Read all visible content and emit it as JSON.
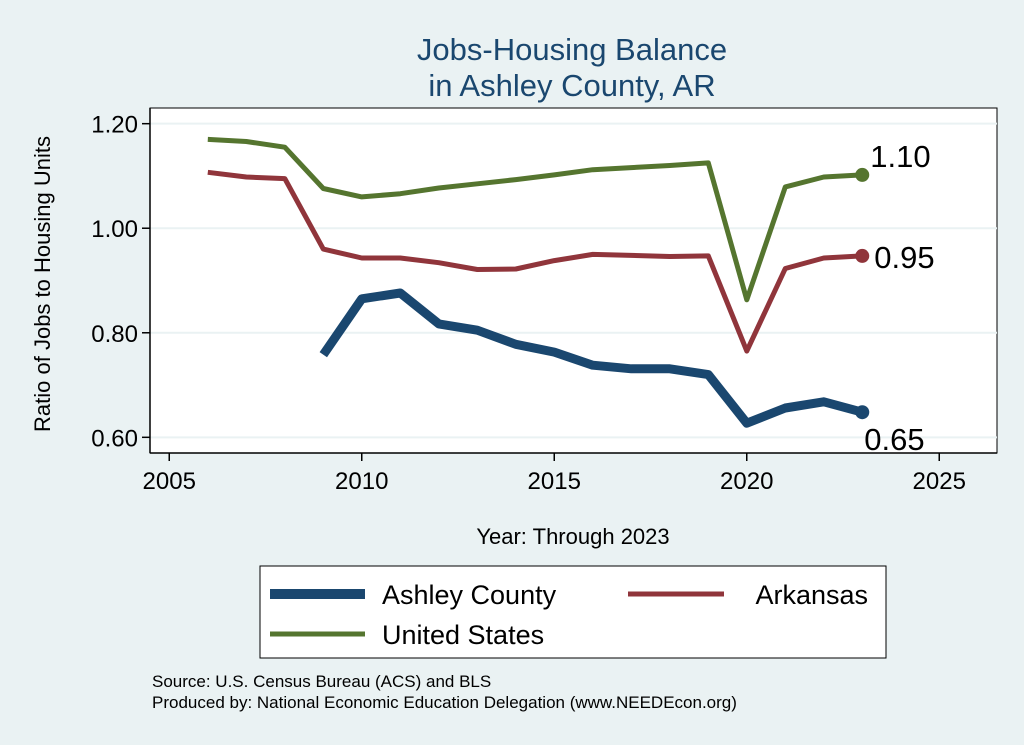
{
  "chart_data": {
    "type": "line",
    "title": [
      "Jobs-Housing Balance",
      "in Ashley County, AR"
    ],
    "xlabel": "Year: Through 2023",
    "ylabel": "Ratio of Jobs to Housing Units",
    "xlim": [
      2004.5,
      2026.5
    ],
    "ylim": [
      0.57,
      1.23
    ],
    "x_ticks": [
      2005,
      2010,
      2015,
      2020,
      2025
    ],
    "y_ticks": [
      0.6,
      0.8,
      1.0,
      1.2
    ],
    "y_tick_labels": [
      "0.60",
      "0.80",
      "1.00",
      "1.20"
    ],
    "grid": true,
    "legend_position": "bottom",
    "series": [
      {
        "name": "Ashley County",
        "color": "#1a476f",
        "x": [
          2009,
          2010,
          2011,
          2012,
          2013,
          2014,
          2015,
          2016,
          2017,
          2018,
          2019,
          2020,
          2021,
          2022,
          2023
        ],
        "y": [
          0.758,
          0.865,
          0.876,
          0.817,
          0.805,
          0.778,
          0.763,
          0.738,
          0.731,
          0.731,
          0.72,
          0.627,
          0.656,
          0.668,
          0.648
        ],
        "end_label": "0.65"
      },
      {
        "name": "Arkansas",
        "color": "#90353b",
        "x": [
          2006,
          2007,
          2008,
          2009,
          2010,
          2011,
          2012,
          2013,
          2014,
          2015,
          2016,
          2017,
          2018,
          2019,
          2020,
          2021,
          2022,
          2023
        ],
        "y": [
          1.107,
          1.098,
          1.095,
          0.96,
          0.943,
          0.943,
          0.934,
          0.921,
          0.922,
          0.938,
          0.95,
          0.948,
          0.946,
          0.947,
          0.765,
          0.923,
          0.943,
          0.947
        ],
        "end_label": "0.95"
      },
      {
        "name": "United States",
        "color": "#55752f",
        "x": [
          2006,
          2007,
          2008,
          2009,
          2010,
          2011,
          2012,
          2013,
          2014,
          2015,
          2016,
          2017,
          2018,
          2019,
          2020,
          2021,
          2022,
          2023
        ],
        "y": [
          1.17,
          1.166,
          1.155,
          1.076,
          1.06,
          1.066,
          1.077,
          1.085,
          1.093,
          1.102,
          1.112,
          1.116,
          1.12,
          1.125,
          0.863,
          1.079,
          1.098,
          1.102
        ],
        "end_label": "1.10"
      }
    ],
    "source_lines": [
      "Source: U.S. Census Bureau (ACS) and BLS",
      "Produced by: National Economic Education Delegation (www.NEEDEcon.org)"
    ]
  }
}
